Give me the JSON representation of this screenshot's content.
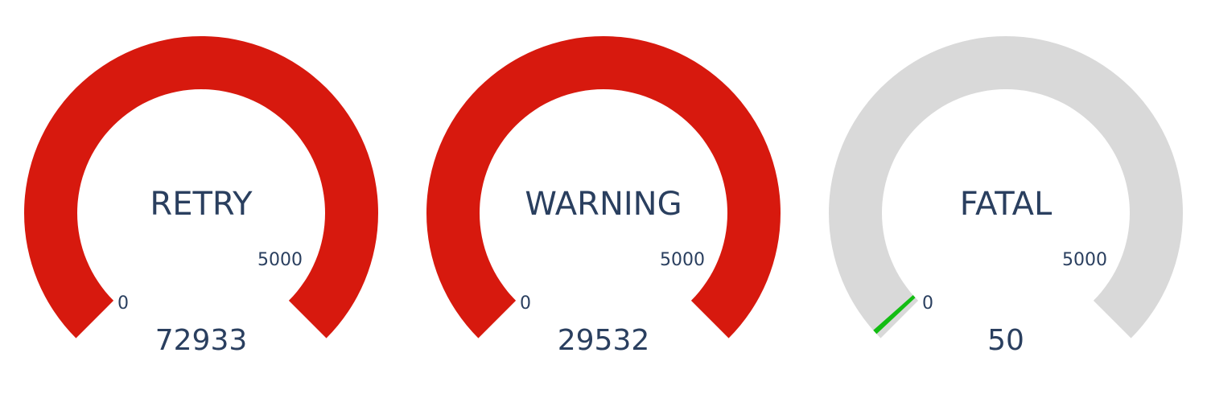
{
  "colors": {
    "track": "#d9d9d9",
    "over_range": "#d7190e",
    "needle": "#13bd13",
    "text": "#2a3f5f"
  },
  "chart_data": [
    {
      "type": "gauge",
      "title": "RETRY",
      "value": 72933,
      "value_label": "72933",
      "range": [
        0,
        5000
      ],
      "min_label": "0",
      "max_label": "5000",
      "state": "over-range"
    },
    {
      "type": "gauge",
      "title": "WARNING",
      "value": 29532,
      "value_label": "29532",
      "range": [
        0,
        5000
      ],
      "min_label": "0",
      "max_label": "5000",
      "state": "over-range"
    },
    {
      "type": "gauge",
      "title": "FATAL",
      "value": 50,
      "value_label": "50",
      "range": [
        0,
        5000
      ],
      "min_label": "0",
      "max_label": "5000",
      "state": "in-range"
    }
  ]
}
